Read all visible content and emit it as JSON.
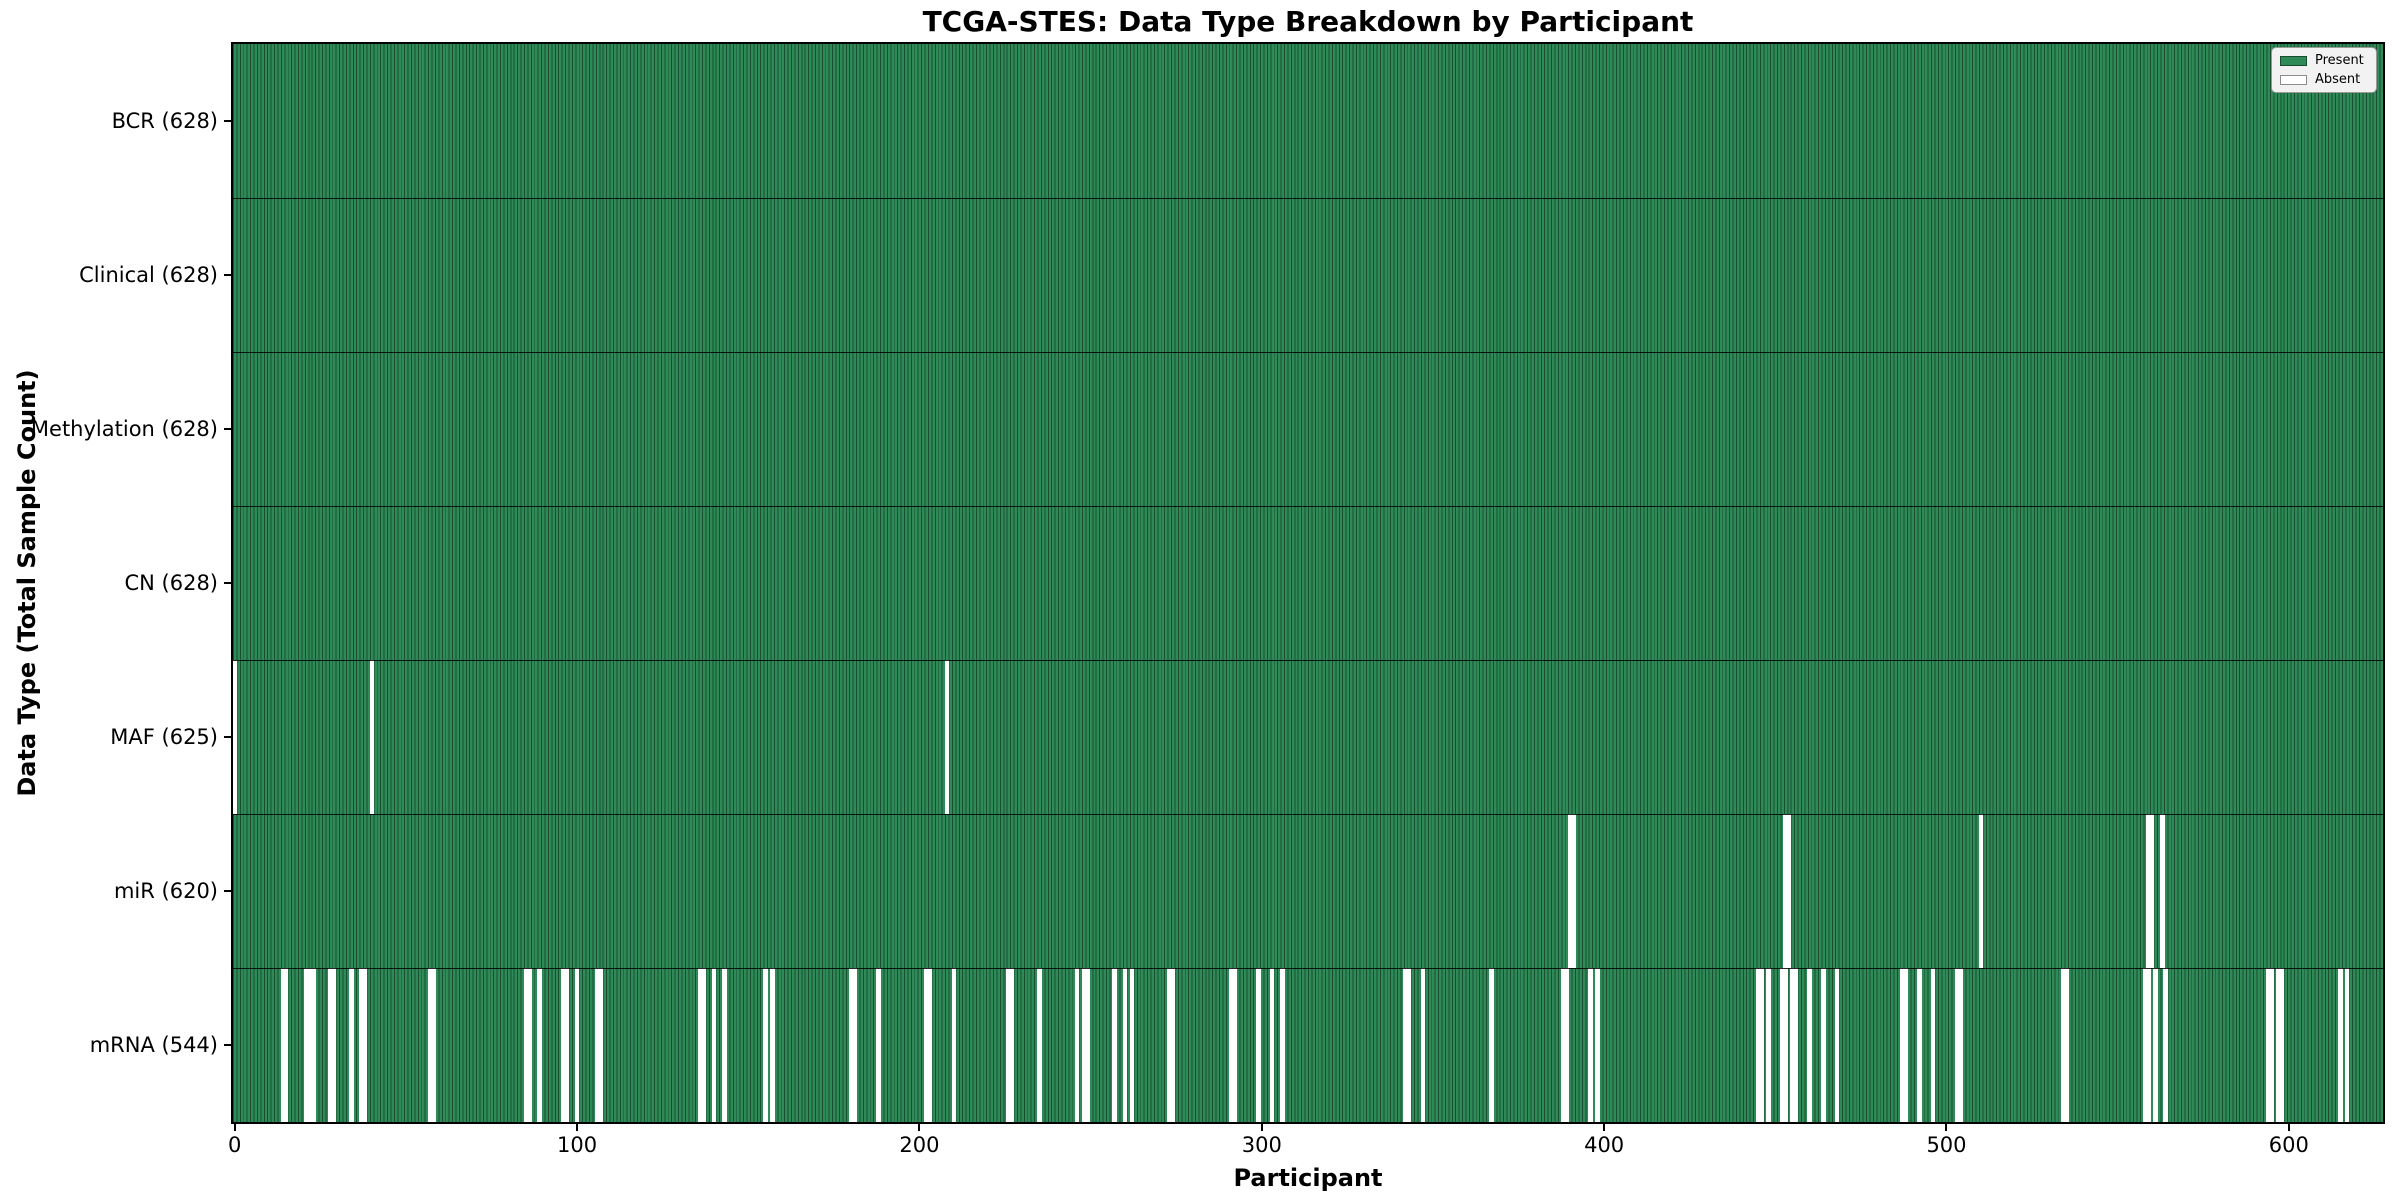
{
  "title": "TCGA-STES: Data Type Breakdown by Participant",
  "xlabel": "Participant",
  "ylabel": "Data Type (Total Sample Count)",
  "legend": {
    "present_label": "Present",
    "absent_label": "Absent"
  },
  "colors": {
    "present": "#2e8b57",
    "absent": "#ffffff",
    "bar_edge": "#10301f",
    "legend_bg": "#f2f2f2",
    "legend_border": "#999999"
  },
  "chart_data": {
    "type": "heatmap",
    "title": "TCGA-STES: Data Type Breakdown by Participant",
    "xlabel": "Participant",
    "ylabel": "Data Type (Total Sample Count)",
    "legend_entries": [
      "Present",
      "Absent"
    ],
    "legend_position": "upper right",
    "grid": false,
    "n_participants": 628,
    "x_ticks": [
      0,
      100,
      200,
      300,
      400,
      500,
      600
    ],
    "rows": [
      {
        "name": "BCR",
        "label": "BCR (628)",
        "count": 628,
        "absent": []
      },
      {
        "name": "Clinical",
        "label": "Clinical (628)",
        "count": 628,
        "absent": []
      },
      {
        "name": "Methylation",
        "label": "Methylation (628)",
        "count": 628,
        "absent": []
      },
      {
        "name": "CN",
        "label": "CN (628)",
        "count": 628,
        "absent": []
      },
      {
        "name": "MAF",
        "label": "MAF (625)",
        "count": 625,
        "absent": [
          0,
          40,
          208
        ]
      },
      {
        "name": "miR",
        "label": "miR (620)",
        "count": 620,
        "absent": [
          390,
          391,
          453,
          454,
          510,
          559,
          560,
          563
        ]
      },
      {
        "name": "mRNA",
        "label": "mRNA (544)",
        "count": 544,
        "absent": [
          14,
          15,
          21,
          22,
          23,
          28,
          29,
          34,
          37,
          38,
          57,
          58,
          85,
          86,
          89,
          96,
          97,
          100,
          106,
          107,
          136,
          137,
          140,
          143,
          155,
          157,
          180,
          181,
          188,
          202,
          203,
          210,
          226,
          227,
          235,
          246,
          248,
          249,
          257,
          260,
          262,
          273,
          274,
          291,
          292,
          299,
          303,
          306,
          342,
          343,
          347,
          367,
          388,
          389,
          396,
          398,
          445,
          446,
          448,
          452,
          453,
          455,
          456,
          460,
          464,
          468,
          487,
          488,
          492,
          496,
          503,
          504,
          534,
          535,
          558,
          559,
          561,
          564,
          594,
          595,
          597,
          598,
          615,
          617
        ]
      }
    ]
  }
}
